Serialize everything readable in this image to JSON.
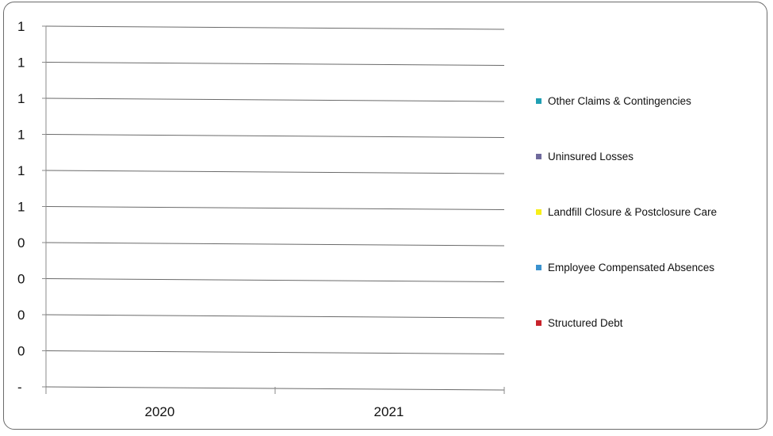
{
  "chart_data": {
    "type": "bar",
    "categories": [
      "2020",
      "2021"
    ],
    "y_tick_labels": [
      "-",
      "0",
      "0",
      "0",
      "0",
      "1",
      "1",
      "1",
      "1",
      "1",
      "1"
    ],
    "series": [
      {
        "name": "Other Claims & Contingencies",
        "color": "#1f9fb3",
        "values": [
          0,
          0
        ]
      },
      {
        "name": "Uninsured Losses",
        "color": "#6f6a9c",
        "values": [
          0,
          0
        ]
      },
      {
        "name": "Landfill Closure & Postclosure Care",
        "color": "#f7ef18",
        "values": [
          0,
          0
        ]
      },
      {
        "name": "Employee Compensated Absences",
        "color": "#3a92cf",
        "values": [
          0,
          0
        ]
      },
      {
        "name": "Structured Debt",
        "color": "#c8232b",
        "values": [
          0,
          0
        ]
      }
    ],
    "ylim": [
      0,
      1
    ],
    "grid": true,
    "legend_position": "right"
  }
}
